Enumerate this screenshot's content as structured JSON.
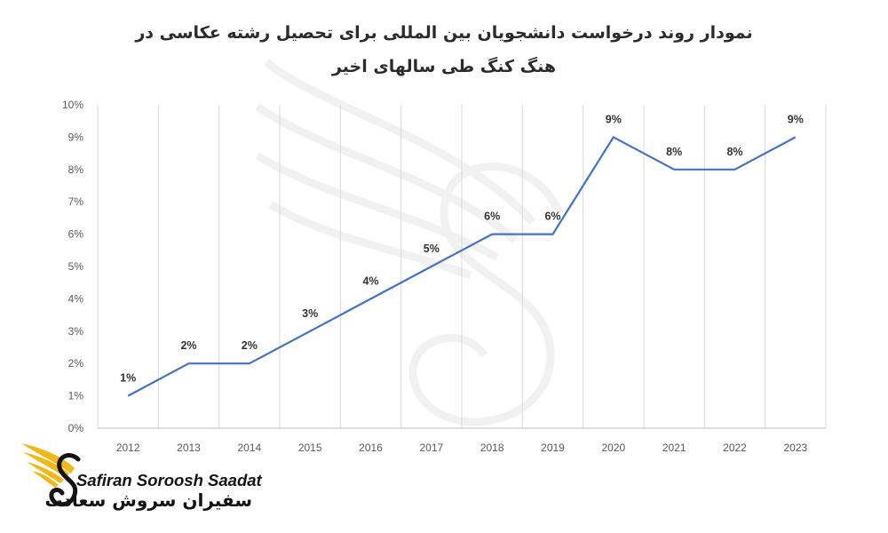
{
  "chart_data": {
    "type": "line",
    "title": "نمودار روند درخواست دانشجویان بین المللی برای تحصیل رشته عکاسی در هنگ کنگ طی سالهای اخیر",
    "categories": [
      "2012",
      "2013",
      "2014",
      "2015",
      "2016",
      "2017",
      "2018",
      "2019",
      "2020",
      "2021",
      "2022",
      "2023"
    ],
    "values": [
      1,
      2,
      2,
      3,
      4,
      5,
      6,
      6,
      9,
      8,
      8,
      9
    ],
    "data_labels": [
      "1%",
      "2%",
      "2%",
      "3%",
      "4%",
      "5%",
      "6%",
      "6%",
      "9%",
      "8%",
      "8%",
      "9%"
    ],
    "y_ticks": [
      "0%",
      "1%",
      "2%",
      "3%",
      "4%",
      "5%",
      "6%",
      "7%",
      "8%",
      "9%",
      "10%"
    ],
    "ylim": [
      0,
      10
    ],
    "xlabel": "",
    "ylabel": "",
    "grid": "vertical",
    "line_color": "#4472C4"
  },
  "brand": {
    "name_en": "Safiran Soroosh Saadat",
    "name_fa": "سفیران سروش سعادت",
    "colors": {
      "gold": "#F2B718",
      "dark": "#141414"
    },
    "icon": "winged-s-logo"
  }
}
